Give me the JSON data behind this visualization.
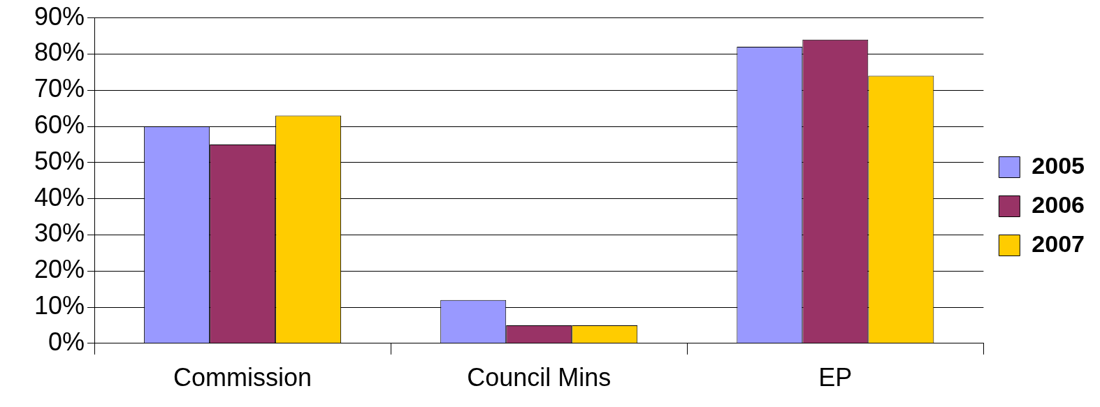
{
  "chart_data": {
    "type": "bar",
    "categories": [
      "Commission",
      "Council Mins",
      "EP"
    ],
    "series": [
      {
        "name": "2005",
        "color": "#9999ff",
        "values": [
          60,
          12,
          82
        ]
      },
      {
        "name": "2006",
        "color": "#993366",
        "values": [
          55,
          5,
          84
        ]
      },
      {
        "name": "2007",
        "color": "#ffcc00",
        "values": [
          63,
          5,
          74
        ]
      }
    ],
    "ylim": [
      0,
      90
    ],
    "yticks": [
      {
        "value": 0,
        "label": "0%"
      },
      {
        "value": 10,
        "label": "10%"
      },
      {
        "value": 20,
        "label": "20%"
      },
      {
        "value": 30,
        "label": "30%"
      },
      {
        "value": 40,
        "label": "40%"
      },
      {
        "value": 50,
        "label": "50%"
      },
      {
        "value": 60,
        "label": "60%"
      },
      {
        "value": 70,
        "label": "70%"
      },
      {
        "value": 80,
        "label": "80%"
      },
      {
        "value": 90,
        "label": "90%"
      }
    ],
    "grid": "y",
    "legend": "right"
  }
}
